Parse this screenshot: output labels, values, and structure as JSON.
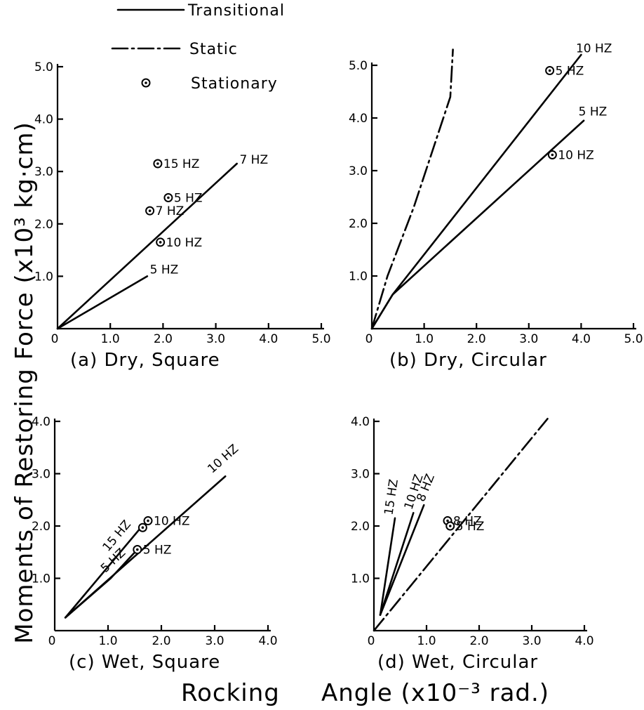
{
  "figure": {
    "xlabel_left": "Rocking",
    "xlabel_right": "Angle (x10⁻³ rad.)",
    "ylabel": "Moments of Restoring Force (x10³ kg·cm)"
  },
  "legend": [
    {
      "label": "Transitional",
      "style": "solid"
    },
    {
      "label": "Static",
      "style": "dashdot"
    },
    {
      "label": "Stationary",
      "style": "marker-circle-dot"
    }
  ],
  "chart_data": [
    {
      "id": "a",
      "type": "line",
      "caption": "(a) Dry, Square",
      "xlim": [
        0,
        5.0
      ],
      "ylim": [
        0,
        5.0
      ],
      "xticks": [
        "0",
        "1.0",
        "2.0",
        "3.0",
        "4.0",
        "5.0"
      ],
      "yticks": [
        "",
        "1.0",
        "2.0",
        "3.0",
        "4.0",
        "5.0"
      ],
      "series": [
        {
          "name": "7 HZ",
          "style": "transitional",
          "points": [
            [
              0,
              0
            ],
            [
              3.4,
              3.15
            ]
          ],
          "label_pos": [
            3.45,
            3.15
          ]
        },
        {
          "name": "5 HZ",
          "style": "transitional",
          "points": [
            [
              0,
              0
            ],
            [
              1.7,
              1.0
            ]
          ],
          "label_pos": [
            1.75,
            1.05
          ]
        }
      ],
      "stationary": [
        {
          "label": "15 HZ",
          "x": 1.9,
          "y": 3.15
        },
        {
          "label": "5 HZ",
          "x": 2.1,
          "y": 2.5
        },
        {
          "label": "7 HZ",
          "x": 1.75,
          "y": 2.25
        },
        {
          "label": "10 HZ",
          "x": 1.95,
          "y": 1.65
        }
      ]
    },
    {
      "id": "b",
      "type": "line",
      "caption": "(b) Dry, Circular",
      "xlim": [
        0,
        5.0
      ],
      "ylim": [
        0,
        5.0
      ],
      "xticks": [
        "0",
        "1.0",
        "2.0",
        "3.0",
        "4.0",
        "5.0"
      ],
      "yticks": [
        "",
        "1.0",
        "2.0",
        "3.0",
        "4.0",
        "5.0"
      ],
      "series": [
        {
          "name": "Static",
          "style": "static",
          "points": [
            [
              0,
              0
            ],
            [
              0.3,
              1.0
            ],
            [
              0.8,
              2.3
            ],
            [
              1.2,
              3.5
            ],
            [
              1.5,
              4.4
            ],
            [
              1.55,
              5.3
            ]
          ]
        },
        {
          "name": "10 HZ",
          "style": "transitional",
          "points": [
            [
              0,
              0
            ],
            [
              0.4,
              0.65
            ],
            [
              4.0,
              5.2
            ]
          ],
          "label_pos": [
            3.9,
            5.25
          ]
        },
        {
          "name": "5 HZ",
          "style": "transitional",
          "points": [
            [
              0,
              0
            ],
            [
              0.4,
              0.65
            ],
            [
              4.05,
              3.95
            ]
          ],
          "label_pos": [
            3.95,
            4.05
          ]
        }
      ],
      "stationary": [
        {
          "label": "5 HZ",
          "x": 3.4,
          "y": 4.9
        },
        {
          "label": "10 HZ",
          "x": 3.45,
          "y": 3.3
        }
      ]
    },
    {
      "id": "c",
      "type": "line",
      "caption": "(c) Wet, Square",
      "xlim": [
        0,
        4.0
      ],
      "ylim": [
        0,
        4.0
      ],
      "xticks": [
        "0",
        "1.0",
        "2.0",
        "3.0",
        "4.0"
      ],
      "yticks": [
        "",
        "1.0",
        "2.0",
        "3.0",
        "4.0"
      ],
      "series": [
        {
          "name": "10 HZ",
          "style": "transitional",
          "points": [
            [
              0.2,
              0.25
            ],
            [
              3.2,
              2.95
            ]
          ],
          "label_pos": [
            2.95,
            3.0
          ]
        },
        {
          "name": "15 HZ",
          "style": "transitional",
          "points": [
            [
              0.2,
              0.25
            ],
            [
              1.6,
              1.95
            ]
          ],
          "label_pos": [
            1.0,
            1.5
          ]
        },
        {
          "name": "5 HZ",
          "style": "transitional",
          "points": [
            [
              0.2,
              0.25
            ],
            [
              1.05,
              1.0
            ],
            [
              1.55,
              1.55
            ]
          ],
          "label_pos": [
            0.95,
            1.1
          ]
        }
      ],
      "stationary": [
        {
          "label": "10 HZ",
          "x": 1.75,
          "y": 2.1
        },
        {
          "label": "",
          "x": 1.65,
          "y": 1.97
        },
        {
          "label": "5 HZ",
          "x": 1.55,
          "y": 1.55
        }
      ]
    },
    {
      "id": "d",
      "type": "line",
      "caption": "(d) Wet, Circular",
      "xlim": [
        0,
        4.0
      ],
      "ylim": [
        0,
        4.0
      ],
      "xticks": [
        "0",
        "1.0",
        "2.0",
        "3.0",
        "4.0"
      ],
      "yticks": [
        "",
        "1.0",
        "2.0",
        "3.0",
        "4.0"
      ],
      "series": [
        {
          "name": "Static",
          "style": "static",
          "points": [
            [
              0,
              0
            ],
            [
              3.3,
              4.05
            ]
          ]
        },
        {
          "name": "15 HZ",
          "style": "transitional",
          "points": [
            [
              0.12,
              0.3
            ],
            [
              0.4,
              2.15
            ]
          ],
          "label_pos": [
            0.35,
            2.2
          ]
        },
        {
          "name": "10 HZ",
          "style": "transitional",
          "points": [
            [
              0.12,
              0.3
            ],
            [
              0.75,
              2.25
            ]
          ],
          "label_pos": [
            0.72,
            2.3
          ]
        },
        {
          "name": "8 HZ",
          "style": "transitional",
          "points": [
            [
              0.12,
              0.3
            ],
            [
              0.95,
              2.4
            ]
          ],
          "label_pos": [
            0.95,
            2.45
          ]
        }
      ],
      "stationary": [
        {
          "label": "8 HZ",
          "x": 1.4,
          "y": 2.1
        },
        {
          "label": "5 HZ",
          "x": 1.45,
          "y": 2.0
        }
      ]
    }
  ]
}
